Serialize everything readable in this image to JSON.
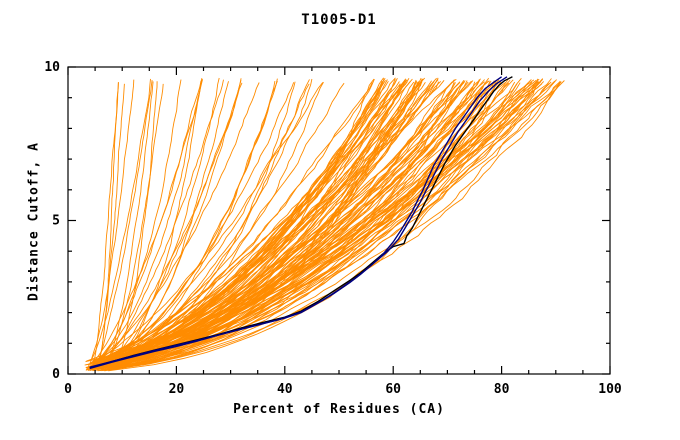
{
  "chart_data": {
    "type": "line",
    "title": "T1005-D1",
    "xlabel": "Percent of Residues (CA)",
    "ylabel": "Distance Cutoff, A",
    "xlim": [
      0,
      100
    ],
    "ylim": [
      0,
      10
    ],
    "x_ticks": [
      0,
      20,
      40,
      60,
      80,
      100
    ],
    "y_ticks": [
      0,
      5,
      10
    ],
    "x_minor_step": 5,
    "y_minor_step": 1,
    "grid": false,
    "legend": "none",
    "colors": {
      "ensemble": "#ff8c00",
      "highlight_black": "#000000",
      "highlight_navy": "#000080",
      "frame": "#000000",
      "background": "#ffffff"
    },
    "ensemble_generation": {
      "count": 150,
      "seed": 1337,
      "y_start_range": [
        0.1,
        0.45
      ],
      "y_end": 9.65,
      "x_start_range": [
        3,
        8
      ],
      "x_end_mix": {
        "low_fraction": 0.2,
        "low_range": [
          9,
          55
        ],
        "high_range": [
          55,
          93
        ]
      },
      "exponent_range": [
        0.32,
        0.72
      ]
    },
    "highlighted_series": [
      {
        "name": "model-black",
        "color": "#000000",
        "points": [
          [
            4,
            0.2
          ],
          [
            8,
            0.4
          ],
          [
            12,
            0.6
          ],
          [
            16,
            0.78
          ],
          [
            20,
            0.95
          ],
          [
            24,
            1.12
          ],
          [
            28,
            1.3
          ],
          [
            32,
            1.5
          ],
          [
            36,
            1.68
          ],
          [
            40,
            1.85
          ],
          [
            43,
            2.05
          ],
          [
            46,
            2.35
          ],
          [
            49,
            2.7
          ],
          [
            52,
            3.05
          ],
          [
            54,
            3.3
          ],
          [
            56,
            3.6
          ],
          [
            58,
            3.9
          ],
          [
            60,
            4.15
          ],
          [
            62,
            4.25
          ],
          [
            62.5,
            4.5
          ],
          [
            63.5,
            4.75
          ],
          [
            64.5,
            5.1
          ],
          [
            65.5,
            5.45
          ],
          [
            66.5,
            5.8
          ],
          [
            67.5,
            6.15
          ],
          [
            68.5,
            6.5
          ],
          [
            69.5,
            6.85
          ],
          [
            70.5,
            7.15
          ],
          [
            71.5,
            7.45
          ],
          [
            72.5,
            7.7
          ],
          [
            73.5,
            7.95
          ],
          [
            74.5,
            8.2
          ],
          [
            75.5,
            8.45
          ],
          [
            76.5,
            8.7
          ],
          [
            77.5,
            8.95
          ],
          [
            78.5,
            9.2
          ],
          [
            79.5,
            9.4
          ],
          [
            80.5,
            9.55
          ],
          [
            82,
            9.68
          ]
        ]
      },
      {
        "name": "model-navy-1",
        "color": "#000080",
        "points": [
          [
            4,
            0.18
          ],
          [
            8,
            0.38
          ],
          [
            12,
            0.56
          ],
          [
            16,
            0.74
          ],
          [
            20,
            0.9
          ],
          [
            24,
            1.08
          ],
          [
            28,
            1.28
          ],
          [
            32,
            1.46
          ],
          [
            36,
            1.64
          ],
          [
            40,
            1.82
          ],
          [
            43,
            2.0
          ],
          [
            46,
            2.3
          ],
          [
            49,
            2.62
          ],
          [
            52,
            2.98
          ],
          [
            54,
            3.25
          ],
          [
            56,
            3.55
          ],
          [
            58,
            3.88
          ],
          [
            60,
            4.3
          ],
          [
            61.5,
            4.7
          ],
          [
            62.5,
            5.0
          ],
          [
            63.5,
            5.3
          ],
          [
            64.5,
            5.65
          ],
          [
            65.5,
            6.0
          ],
          [
            66.5,
            6.4
          ],
          [
            67.5,
            6.8
          ],
          [
            68.5,
            7.1
          ],
          [
            69.5,
            7.4
          ],
          [
            70.5,
            7.7
          ],
          [
            71.5,
            8.0
          ],
          [
            72.5,
            8.25
          ],
          [
            73.5,
            8.5
          ],
          [
            74.5,
            8.75
          ],
          [
            75.5,
            9.0
          ],
          [
            77,
            9.3
          ],
          [
            78.5,
            9.5
          ],
          [
            80,
            9.68
          ]
        ]
      },
      {
        "name": "model-navy-2",
        "color": "#000080",
        "points": [
          [
            4,
            0.22
          ],
          [
            9,
            0.45
          ],
          [
            14,
            0.68
          ],
          [
            19,
            0.9
          ],
          [
            24,
            1.1
          ],
          [
            29,
            1.33
          ],
          [
            34,
            1.56
          ],
          [
            39,
            1.78
          ],
          [
            43,
            2.02
          ],
          [
            47,
            2.4
          ],
          [
            50,
            2.75
          ],
          [
            53,
            3.12
          ],
          [
            55,
            3.4
          ],
          [
            57,
            3.7
          ],
          [
            59,
            4.0
          ],
          [
            61,
            4.4
          ],
          [
            62.5,
            4.85
          ],
          [
            64,
            5.3
          ],
          [
            65,
            5.6
          ],
          [
            66,
            5.95
          ],
          [
            67,
            6.3
          ],
          [
            68,
            6.65
          ],
          [
            69,
            7.0
          ],
          [
            70,
            7.3
          ],
          [
            71,
            7.6
          ],
          [
            72,
            7.9
          ],
          [
            73,
            8.15
          ],
          [
            74,
            8.4
          ],
          [
            75,
            8.65
          ],
          [
            76,
            8.9
          ],
          [
            77.5,
            9.2
          ],
          [
            79,
            9.45
          ],
          [
            81,
            9.68
          ]
        ]
      }
    ]
  }
}
